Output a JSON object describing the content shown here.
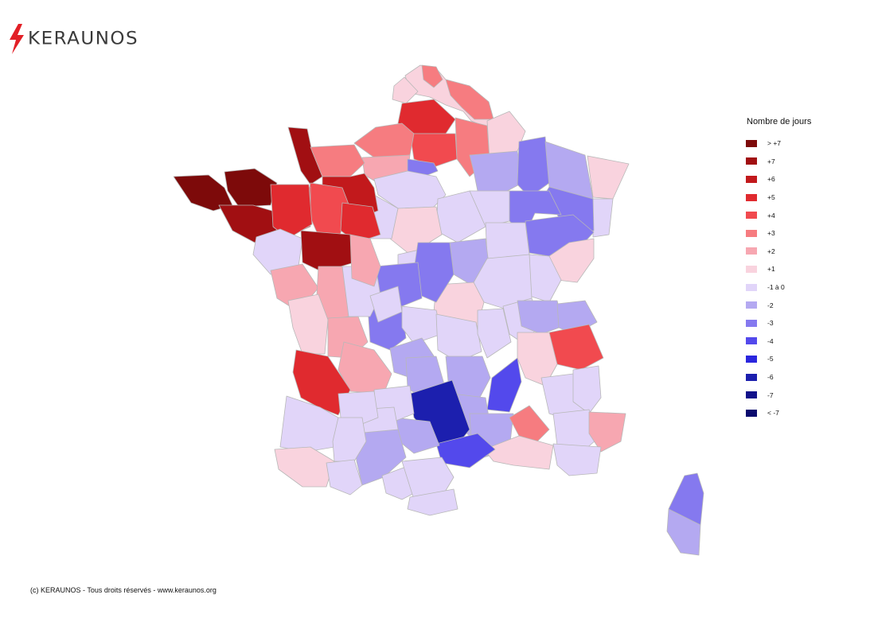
{
  "brand": {
    "name": "KERAUNOS",
    "accent": "#e21f26",
    "text_color": "#3a3a3a"
  },
  "legend": {
    "title": "Nombre de jours",
    "items": [
      {
        "label": "> +7",
        "color": "#7d0a0a"
      },
      {
        "label": "+7",
        "color": "#a10f12"
      },
      {
        "label": "+6",
        "color": "#c2191c"
      },
      {
        "label": "+5",
        "color": "#e02a2f"
      },
      {
        "label": "+4",
        "color": "#f14a4f"
      },
      {
        "label": "+3",
        "color": "#f67c80"
      },
      {
        "label": "+2",
        "color": "#f7a7b1"
      },
      {
        "label": "+1",
        "color": "#f9d3de"
      },
      {
        "label": "-1 à 0",
        "color": "#e1d5f9"
      },
      {
        "label": "-2",
        "color": "#b4a9f1"
      },
      {
        "label": "-3",
        "color": "#8579ef"
      },
      {
        "label": "-4",
        "color": "#5349ec"
      },
      {
        "label": "-5",
        "color": "#2b26de"
      },
      {
        "label": "-6",
        "color": "#1c1fae"
      },
      {
        "label": "-7",
        "color": "#12128a"
      },
      {
        "label": "< -7",
        "color": "#0b0b6e"
      }
    ]
  },
  "footer": {
    "copyright": "(c) KERAUNOS - Tous droits réservés - www.keraunos.org"
  }
}
